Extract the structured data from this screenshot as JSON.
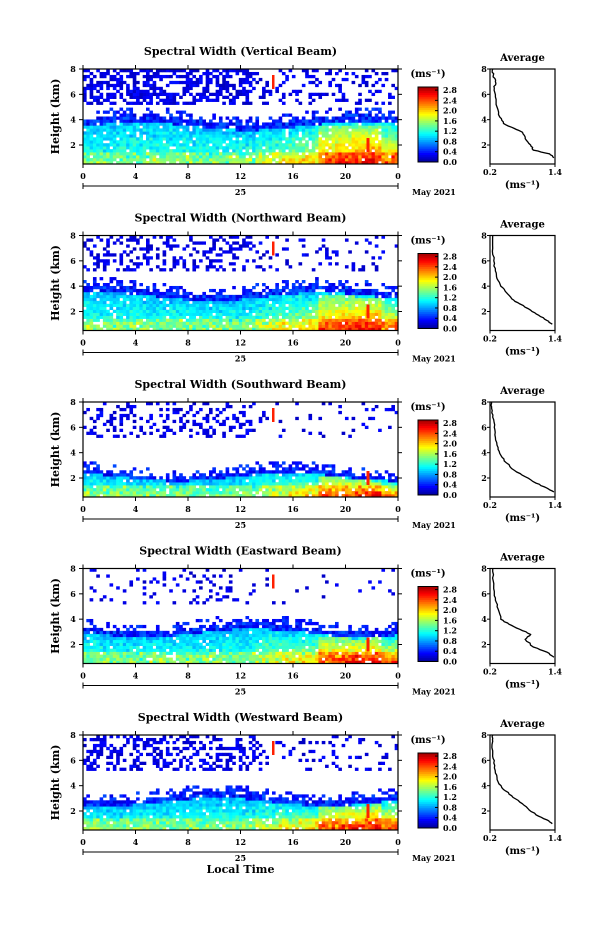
{
  "chart_data": [
    {
      "type": "heatmap",
      "title": "Spectral Width (Vertical Beam)",
      "ylabel": "Height (km)",
      "unit": "(ms⁻¹)",
      "profile": {
        "title": "Average",
        "xlabel": "(ms⁻¹)",
        "xlim": [
          0.2,
          1.4
        ],
        "ylim": [
          0.5,
          8
        ],
        "points": [
          [
            1.38,
            1.0
          ],
          [
            1.3,
            1.3
          ],
          [
            1.0,
            1.6
          ],
          [
            0.95,
            2.0
          ],
          [
            0.85,
            2.5
          ],
          [
            0.8,
            3.0
          ],
          [
            0.65,
            3.3
          ],
          [
            0.45,
            3.7
          ],
          [
            0.38,
            4.2
          ],
          [
            0.33,
            5.0
          ],
          [
            0.3,
            5.8
          ],
          [
            0.28,
            6.5
          ],
          [
            0.3,
            7.0
          ],
          [
            0.26,
            7.5
          ],
          [
            0.25,
            8.0
          ]
        ]
      }
    },
    {
      "type": "heatmap",
      "title": "Spectral Width (Northward Beam)",
      "ylabel": "Height (km)",
      "unit": "(ms⁻¹)",
      "profile": {
        "title": "Average",
        "xlabel": "(ms⁻¹)",
        "xlim": [
          0.2,
          1.4
        ],
        "ylim": [
          0.5,
          8
        ],
        "points": [
          [
            1.35,
            1.0
          ],
          [
            1.25,
            1.3
          ],
          [
            1.1,
            1.7
          ],
          [
            0.95,
            2.1
          ],
          [
            0.75,
            2.6
          ],
          [
            0.6,
            3.0
          ],
          [
            0.5,
            3.5
          ],
          [
            0.4,
            4.0
          ],
          [
            0.33,
            4.6
          ],
          [
            0.3,
            5.2
          ],
          [
            0.27,
            6.0
          ],
          [
            0.25,
            7.0
          ],
          [
            0.25,
            8.0
          ]
        ]
      }
    },
    {
      "type": "heatmap",
      "title": "Spectral Width (Southward Beam)",
      "ylabel": "Height (km)",
      "unit": "(ms⁻¹)",
      "profile": {
        "title": "Average",
        "xlabel": "(ms⁻¹)",
        "xlim": [
          0.2,
          1.4
        ],
        "ylim": [
          0.5,
          8
        ],
        "points": [
          [
            1.38,
            0.9
          ],
          [
            1.25,
            1.2
          ],
          [
            1.05,
            1.6
          ],
          [
            0.85,
            2.1
          ],
          [
            0.65,
            2.6
          ],
          [
            0.5,
            3.2
          ],
          [
            0.4,
            3.8
          ],
          [
            0.35,
            4.4
          ],
          [
            0.3,
            5.2
          ],
          [
            0.28,
            6.0
          ],
          [
            0.25,
            6.8
          ],
          [
            0.23,
            7.5
          ],
          [
            0.23,
            8.0
          ]
        ]
      }
    },
    {
      "type": "heatmap",
      "title": "Spectral Width (Eastward Beam)",
      "ylabel": "Height (km)",
      "unit": "(ms⁻¹)",
      "profile": {
        "title": "Average",
        "xlabel": "(ms⁻¹)",
        "xlim": [
          0.2,
          1.4
        ],
        "ylim": [
          0.5,
          8
        ],
        "points": [
          [
            1.38,
            1.0
          ],
          [
            1.25,
            1.4
          ],
          [
            1.0,
            1.8
          ],
          [
            0.85,
            2.4
          ],
          [
            0.95,
            2.8
          ],
          [
            0.75,
            3.2
          ],
          [
            0.55,
            3.6
          ],
          [
            0.4,
            4.0
          ],
          [
            0.35,
            4.8
          ],
          [
            0.3,
            5.5
          ],
          [
            0.28,
            6.2
          ],
          [
            0.26,
            7.0
          ],
          [
            0.25,
            8.0
          ]
        ]
      }
    },
    {
      "type": "heatmap",
      "title": "Spectral Width (Westward Beam)",
      "ylabel": "Height (km)",
      "unit": "(ms⁻¹)",
      "profile": {
        "title": "Average",
        "xlabel": "(ms⁻¹)",
        "xlim": [
          0.2,
          1.4
        ],
        "ylim": [
          0.5,
          8
        ],
        "points": [
          [
            1.35,
            1.0
          ],
          [
            1.25,
            1.3
          ],
          [
            1.05,
            1.7
          ],
          [
            0.9,
            2.2
          ],
          [
            0.75,
            2.7
          ],
          [
            0.6,
            3.2
          ],
          [
            0.45,
            3.7
          ],
          [
            0.35,
            4.3
          ],
          [
            0.3,
            5.0
          ],
          [
            0.27,
            5.8
          ],
          [
            0.25,
            6.5
          ],
          [
            0.25,
            7.5
          ],
          [
            0.25,
            8.0
          ]
        ]
      }
    }
  ],
  "shared": {
    "x_ticks": [
      "0",
      "4",
      "8",
      "12",
      "16",
      "20",
      "0"
    ],
    "day_label": "25",
    "date_label": "May 2021",
    "xlabel": "Local Time",
    "y_ticks": [
      "2",
      "4",
      "6",
      "8"
    ],
    "colorbar_ticks": [
      "0.0",
      "0.4",
      "0.8",
      "1.2",
      "1.6",
      "2.0",
      "2.4",
      "2.8"
    ],
    "colors": {
      "low": "#000080",
      "mid": "#00c0ff",
      "high": "#ff2000",
      "axis": "#000000"
    }
  }
}
